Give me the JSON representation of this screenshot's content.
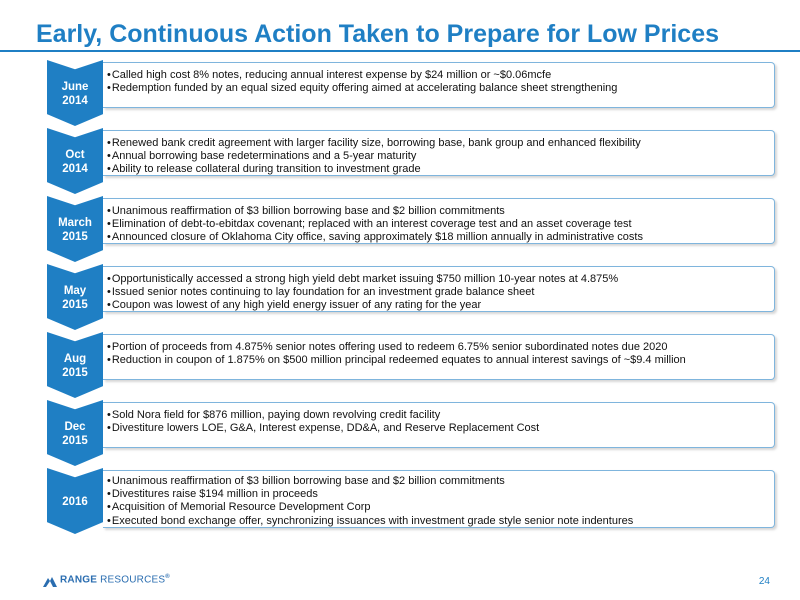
{
  "title": "Early, Continuous Action Taken to Prepare for Low Prices",
  "timeline": [
    {
      "label": "June\n2014",
      "bullets": [
        "Called high cost 8% notes, reducing annual interest expense by $24 million or ~$0.06mcfe",
        "Redemption funded by an equal sized equity offering aimed at accelerating balance sheet strengthening"
      ]
    },
    {
      "label": "Oct\n2014",
      "bullets": [
        "Renewed bank credit agreement with larger facility size, borrowing base, bank group and enhanced flexibility",
        "Annual borrowing base redeterminations and a 5-year maturity",
        "Ability to release collateral during transition to investment grade"
      ]
    },
    {
      "label": "March\n2015",
      "bullets": [
        "Unanimous reaffirmation of $3 billion borrowing base and $2 billion commitments",
        "Elimination of debt-to-ebitdax covenant; replaced with an interest coverage test and an asset coverage test",
        "Announced closure of Oklahoma City office, saving approximately $18 million annually in administrative costs"
      ]
    },
    {
      "label": "May\n2015",
      "bullets": [
        "Opportunistically accessed a strong high yield debt market issuing $750 million 10-year notes at 4.875%",
        "Issued senior notes continuing to lay foundation for an investment grade balance sheet",
        "Coupon was lowest of any high yield energy issuer of any rating for the year"
      ]
    },
    {
      "label": "Aug\n2015",
      "bullets": [
        "Portion of proceeds from 4.875% senior notes offering used to redeem 6.75% senior subordinated notes due 2020",
        "Reduction in coupon of 1.875% on $500 million principal redeemed equates to annual interest savings of ~$9.4 million"
      ]
    },
    {
      "label": "Dec\n2015",
      "bullets": [
        "Sold Nora field for $876 million, paying down revolving credit facility",
        "Divestiture lowers LOE, G&A, Interest expense, DD&A, and Reserve Replacement Cost"
      ]
    },
    {
      "label": "2016",
      "bullets": [
        "Unanimous reaffirmation of $3 billion borrowing base and $2 billion commitments",
        "Divestitures raise $194 million in proceeds",
        "Acquisition of Memorial Resource Development Corp",
        "Executed bond exchange offer, synchronizing issuances with investment grade style senior note indentures"
      ]
    }
  ],
  "footer": {
    "logo_bold": "RANGE",
    "logo_light": " RESOURCES",
    "logo_mark": "®",
    "page_number": "24"
  },
  "colors": {
    "accent": "#1f7fc4",
    "card_border": "#7fb5dd"
  }
}
